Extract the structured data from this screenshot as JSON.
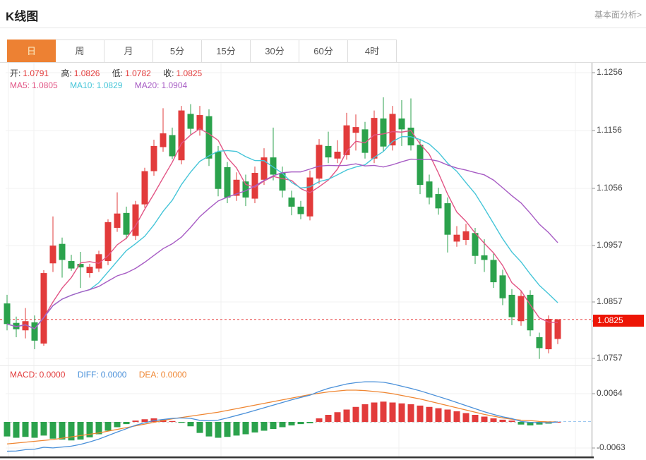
{
  "header": {
    "title": "K线图",
    "analysis_link": "基本面分析>"
  },
  "tabs": [
    {
      "label": "日",
      "active": true
    },
    {
      "label": "周"
    },
    {
      "label": "月"
    },
    {
      "label": "5分"
    },
    {
      "label": "15分"
    },
    {
      "label": "30分"
    },
    {
      "label": "60分"
    },
    {
      "label": "4时"
    }
  ],
  "ohlc_legend": {
    "open_label": "开:",
    "open": "1.0791",
    "high_label": "高:",
    "high": "1.0826",
    "low_label": "低:",
    "low": "1.0782",
    "close_label": "收:",
    "close": "1.0825"
  },
  "ma_legend": {
    "ma5_label": "MA5:",
    "ma5": "1.0805",
    "ma10_label": "MA10:",
    "ma10": "1.0829",
    "ma20_label": "MA20:",
    "ma20": "1.0904"
  },
  "macd_legend": {
    "macd_label": "MACD:",
    "macd": "0.0000",
    "diff_label": "DIFF:",
    "diff": "0.0000",
    "dea_label": "DEA:",
    "dea": "0.0000"
  },
  "price_axis": {
    "ticks": [
      "1.1256",
      "1.1156",
      "1.1056",
      "1.0957",
      "1.0857",
      "1.0757"
    ],
    "current_price_label": "1.0825"
  },
  "macd_axis": {
    "ticks": [
      "0.0064",
      "-0.0063"
    ]
  },
  "colors": {
    "up": "#e23b3b",
    "down": "#2ba24c",
    "ma5": "#e25585",
    "ma10": "#45c5d8",
    "ma20": "#a75cc4",
    "diff": "#4a90d9",
    "dea": "#ef8632",
    "price_line": "#e84545",
    "badge_bg": "#ed1505",
    "badge_text": "#ffffff",
    "tab_active_bg": "#ed8133",
    "tab_active_text": "#fcf3cc",
    "link": "#999999",
    "label": "#333333",
    "grid": "#f0f0f0",
    "axis": "#999999"
  },
  "chart_data": {
    "type": "candlestick",
    "title": "K线图",
    "interval": "日",
    "ylim": [
      1.0757,
      1.1256
    ],
    "y_ticks": [
      1.1256,
      1.1156,
      1.1056,
      1.0957,
      1.0857,
      1.0757
    ],
    "current_price": 1.0825,
    "last_bar": {
      "open": 1.0791,
      "high": 1.0826,
      "low": 1.0782,
      "close": 1.0825
    },
    "ma_periods": [
      5,
      10,
      20
    ],
    "ma_last": {
      "ma5": 1.0805,
      "ma10": 1.0829,
      "ma20": 1.0904
    },
    "candles": [
      [
        1.0853,
        1.0868,
        1.0806,
        1.0817
      ],
      [
        1.0819,
        1.083,
        1.0794,
        1.0808
      ],
      [
        1.0806,
        1.0845,
        1.0792,
        1.0822
      ],
      [
        1.082,
        1.0832,
        1.0773,
        1.0788
      ],
      [
        1.0783,
        1.0911,
        1.0779,
        1.0906
      ],
      [
        1.0923,
        1.1005,
        1.0908,
        1.0954
      ],
      [
        1.0957,
        1.0968,
        1.0898,
        1.0929
      ],
      [
        1.0927,
        1.0938,
        1.091,
        1.0914
      ],
      [
        1.0922,
        1.0943,
        1.088,
        1.0916
      ],
      [
        1.0906,
        1.0922,
        1.0898,
        1.0917
      ],
      [
        1.0914,
        1.0945,
        1.0908,
        1.0939
      ],
      [
        1.0927,
        1.1,
        1.092,
        1.0995
      ],
      [
        1.0985,
        1.1047,
        1.0978,
        1.101
      ],
      [
        1.1011,
        1.1022,
        1.0965,
        1.0973
      ],
      [
        1.0971,
        1.1032,
        1.0964,
        1.1026
      ],
      [
        1.1026,
        1.109,
        1.102,
        1.1084
      ],
      [
        1.1084,
        1.1139,
        1.1076,
        1.1128
      ],
      [
        1.1126,
        1.1194,
        1.1118,
        1.115
      ],
      [
        1.1147,
        1.116,
        1.1105,
        1.111
      ],
      [
        1.1103,
        1.1198,
        1.1096,
        1.119
      ],
      [
        1.1184,
        1.1201,
        1.1148,
        1.1158
      ],
      [
        1.1156,
        1.1198,
        1.1146,
        1.1182
      ],
      [
        1.118,
        1.1192,
        1.1093,
        1.1106
      ],
      [
        1.1118,
        1.1128,
        1.104,
        1.1053
      ],
      [
        1.1091,
        1.11,
        1.1028,
        1.1038
      ],
      [
        1.1041,
        1.1082,
        1.1032,
        1.1069
      ],
      [
        1.1066,
        1.1078,
        1.1023,
        1.1038
      ],
      [
        1.1036,
        1.1092,
        1.1028,
        1.1081
      ],
      [
        1.1069,
        1.1124,
        1.106,
        1.1108
      ],
      [
        1.1108,
        1.116,
        1.1068,
        1.1078
      ],
      [
        1.1081,
        1.1092,
        1.1038,
        1.105
      ],
      [
        1.1038,
        1.105,
        1.1007,
        1.1022
      ],
      [
        1.1022,
        1.1032,
        1.1,
        1.1009
      ],
      [
        1.1005,
        1.1085,
        1.0998,
        1.1073
      ],
      [
        1.1071,
        1.114,
        1.1062,
        1.113
      ],
      [
        1.1128,
        1.1153,
        1.1098,
        1.1108
      ],
      [
        1.1106,
        1.1138,
        1.1098,
        1.1118
      ],
      [
        1.1112,
        1.1186,
        1.1104,
        1.1164
      ],
      [
        1.1151,
        1.1183,
        1.112,
        1.1161
      ],
      [
        1.1157,
        1.117,
        1.1106,
        1.1116
      ],
      [
        1.1106,
        1.119,
        1.1098,
        1.1177
      ],
      [
        1.1176,
        1.1213,
        1.1118,
        1.1127
      ],
      [
        1.1129,
        1.1198,
        1.112,
        1.1184
      ],
      [
        1.1176,
        1.1208,
        1.1128,
        1.1157
      ],
      [
        1.116,
        1.1211,
        1.112,
        1.1129
      ],
      [
        1.113,
        1.114,
        1.1044,
        1.106
      ],
      [
        1.1066,
        1.1078,
        1.1026,
        1.1038
      ],
      [
        1.1044,
        1.1055,
        1.1008,
        1.1019
      ],
      [
        1.1028,
        1.1038,
        1.0942,
        1.0973
      ],
      [
        1.0961,
        1.0988,
        1.0952,
        1.0973
      ],
      [
        1.0964,
        1.0992,
        1.0955,
        1.0979
      ],
      [
        1.0976,
        1.0985,
        1.0922,
        1.0936
      ],
      [
        1.0937,
        1.0965,
        1.0908,
        1.0929
      ],
      [
        1.0929,
        1.094,
        1.088,
        1.089
      ],
      [
        1.0902,
        1.0912,
        1.085,
        1.0862
      ],
      [
        1.0868,
        1.0878,
        1.0815,
        1.0829
      ],
      [
        1.0822,
        1.0875,
        1.0814,
        1.0866
      ],
      [
        1.0868,
        1.0876,
        1.0796,
        1.0806
      ],
      [
        1.0794,
        1.0802,
        1.0756,
        1.0775
      ],
      [
        1.0773,
        1.0832,
        1.0766,
        1.0826
      ],
      [
        1.0791,
        1.0826,
        1.0782,
        1.0825
      ]
    ],
    "macd": {
      "ylim": [
        -0.0063,
        0.0064
      ],
      "y_ticks": [
        0.0064,
        -0.0063
      ],
      "last": {
        "macd": 0.0,
        "diff": 0.0,
        "dea": 0.0
      },
      "hist": [
        -0.0033,
        -0.0036,
        -0.0034,
        -0.0036,
        -0.0031,
        -0.0038,
        -0.004,
        -0.0042,
        -0.004,
        -0.0035,
        -0.0028,
        -0.002,
        -0.0012,
        -0.0005,
        0.0003,
        0.0006,
        0.0008,
        0.0005,
        0.0002,
        -0.0002,
        -0.001,
        -0.0025,
        -0.0033,
        -0.0036,
        -0.0034,
        -0.0031,
        -0.0028,
        -0.0024,
        -0.002,
        -0.0016,
        -0.0012,
        -0.0008,
        -0.0005,
        -0.0003,
        0.0008,
        0.0016,
        0.0022,
        0.0028,
        0.0034,
        0.004,
        0.0044,
        0.0046,
        0.0044,
        0.0042,
        0.004,
        0.0037,
        0.0034,
        0.0031,
        0.0028,
        0.0024,
        0.002,
        0.0016,
        0.0012,
        0.0008,
        0.0005,
        0.0003,
        -0.0006,
        -0.0008,
        -0.0006,
        -0.0004,
        0.0
      ],
      "dea": [
        -0.005,
        -0.0048,
        -0.0046,
        -0.0044,
        -0.0042,
        -0.004,
        -0.0037,
        -0.0034,
        -0.0031,
        -0.0028,
        -0.0025,
        -0.0021,
        -0.0017,
        -0.0013,
        -0.0009,
        -0.0005,
        -0.0001,
        0.0003,
        0.0007,
        0.001,
        0.0013,
        0.0016,
        0.0019,
        0.0022,
        0.0026,
        0.003,
        0.0034,
        0.0038,
        0.0042,
        0.0046,
        0.005,
        0.0054,
        0.0058,
        0.0062,
        0.0065,
        0.0068,
        0.007,
        0.0072,
        0.0072,
        0.0071,
        0.0069,
        0.0067,
        0.0064,
        0.006,
        0.0056,
        0.0052,
        0.0047,
        0.0042,
        0.0037,
        0.0032,
        0.0027,
        0.0022,
        0.0017,
        0.0013,
        0.0009,
        0.0006,
        0.0004,
        0.0003,
        0.0001,
        0.0,
        0.0
      ]
    }
  }
}
